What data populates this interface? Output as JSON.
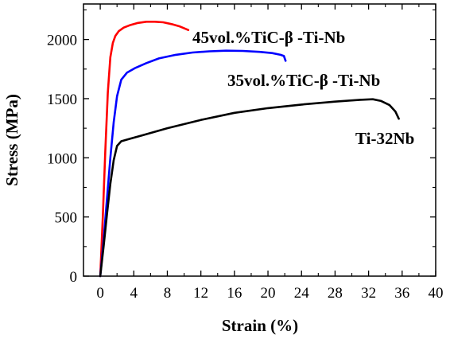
{
  "chart_data": {
    "type": "line",
    "title": "",
    "xlabel": "Strain (%)",
    "ylabel": "Stress (MPa)",
    "xlim": [
      -2,
      40
    ],
    "ylim": [
      0,
      2300
    ],
    "xticks": [
      0,
      4,
      8,
      12,
      16,
      20,
      24,
      28,
      32,
      36,
      40
    ],
    "yticks": [
      0,
      500,
      1000,
      1500,
      2000
    ],
    "grid": false,
    "legend": "inline labels near curves",
    "series": [
      {
        "name": "45vol.%TiC-β -Ti-Nb",
        "color": "#ff0000",
        "x": [
          0,
          0.3,
          0.6,
          0.9,
          1.2,
          1.5,
          1.8,
          2.2,
          2.8,
          3.5,
          4.5,
          5.5,
          6.5,
          7.5,
          8.5,
          9.5,
          10.5
        ],
        "y": [
          0,
          500,
          1050,
          1550,
          1850,
          1970,
          2030,
          2070,
          2100,
          2120,
          2140,
          2150,
          2150,
          2145,
          2130,
          2110,
          2080
        ]
      },
      {
        "name": "35vol.%TiC-β -Ti-Nb",
        "color": "#0000ff",
        "x": [
          0,
          0.4,
          0.8,
          1.2,
          1.6,
          2.0,
          2.5,
          3.2,
          4.2,
          5.5,
          7,
          9,
          11,
          13,
          15,
          17,
          19,
          20.5,
          21.5,
          21.9,
          22.1
        ],
        "y": [
          0,
          300,
          650,
          1000,
          1300,
          1520,
          1660,
          1720,
          1760,
          1800,
          1840,
          1870,
          1890,
          1900,
          1905,
          1903,
          1895,
          1885,
          1870,
          1860,
          1820
        ]
      },
      {
        "name": "Ti-32Nb",
        "color": "#000000",
        "x": [
          0,
          0.4,
          0.8,
          1.2,
          1.6,
          2.0,
          2.5,
          3.5,
          5,
          8,
          12,
          16,
          20,
          24,
          28,
          31,
          32.5,
          33.5,
          34.5,
          35.2,
          35.6
        ],
        "y": [
          0,
          250,
          520,
          780,
          980,
          1100,
          1140,
          1160,
          1190,
          1250,
          1320,
          1380,
          1420,
          1450,
          1475,
          1490,
          1495,
          1480,
          1445,
          1390,
          1330
        ]
      }
    ],
    "series_labels": [
      "45vol.%TiC-β -Ti-Nb",
      "35vol.%TiC-β -Ti-Nb",
      "Ti-32Nb"
    ]
  }
}
